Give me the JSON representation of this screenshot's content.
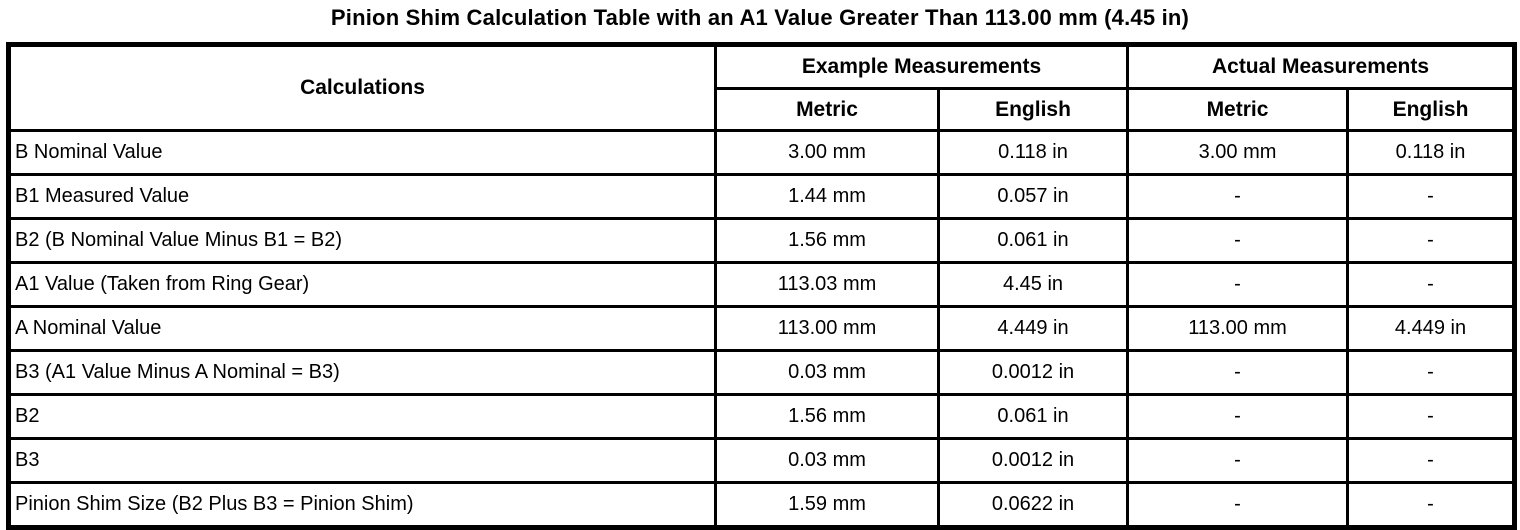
{
  "title": "Pinion Shim Calculation Table with an A1 Value Greater Than 113.00 mm (4.45 in)",
  "table": {
    "header": {
      "calculations": "Calculations",
      "example_group": "Example Measurements",
      "actual_group": "Actual Measurements",
      "metric": "Metric",
      "english": "English"
    },
    "rows": [
      {
        "label": "B Nominal Value",
        "example_metric": "3.00 mm",
        "example_english": "0.118 in",
        "actual_metric": "3.00 mm",
        "actual_english": "0.118 in"
      },
      {
        "label": "B1 Measured Value",
        "example_metric": "1.44 mm",
        "example_english": "0.057 in",
        "actual_metric": "-",
        "actual_english": "-"
      },
      {
        "label": "B2 (B Nominal Value Minus B1 = B2)",
        "example_metric": "1.56 mm",
        "example_english": "0.061 in",
        "actual_metric": "-",
        "actual_english": "-"
      },
      {
        "label": "A1 Value (Taken from Ring Gear)",
        "example_metric": "113.03 mm",
        "example_english": "4.45 in",
        "actual_metric": "-",
        "actual_english": "-"
      },
      {
        "label": "A Nominal Value",
        "example_metric": "113.00 mm",
        "example_english": "4.449 in",
        "actual_metric": "113.00 mm",
        "actual_english": "4.449 in"
      },
      {
        "label": "B3 (A1 Value Minus A Nominal = B3)",
        "example_metric": "0.03 mm",
        "example_english": "0.0012 in",
        "actual_metric": "-",
        "actual_english": "-"
      },
      {
        "label": "B2",
        "example_metric": "1.56 mm",
        "example_english": "0.061 in",
        "actual_metric": "-",
        "actual_english": "-"
      },
      {
        "label": "B3",
        "example_metric": "0.03 mm",
        "example_english": "0.0012 in",
        "actual_metric": "-",
        "actual_english": "-"
      },
      {
        "label": "Pinion Shim Size (B2 Plus B3 = Pinion Shim)",
        "example_metric": "1.59 mm",
        "example_english": "0.0622 in",
        "actual_metric": "-",
        "actual_english": "-"
      }
    ]
  },
  "colors": {
    "text": "#000000",
    "border": "#000000",
    "background": "#ffffff"
  }
}
